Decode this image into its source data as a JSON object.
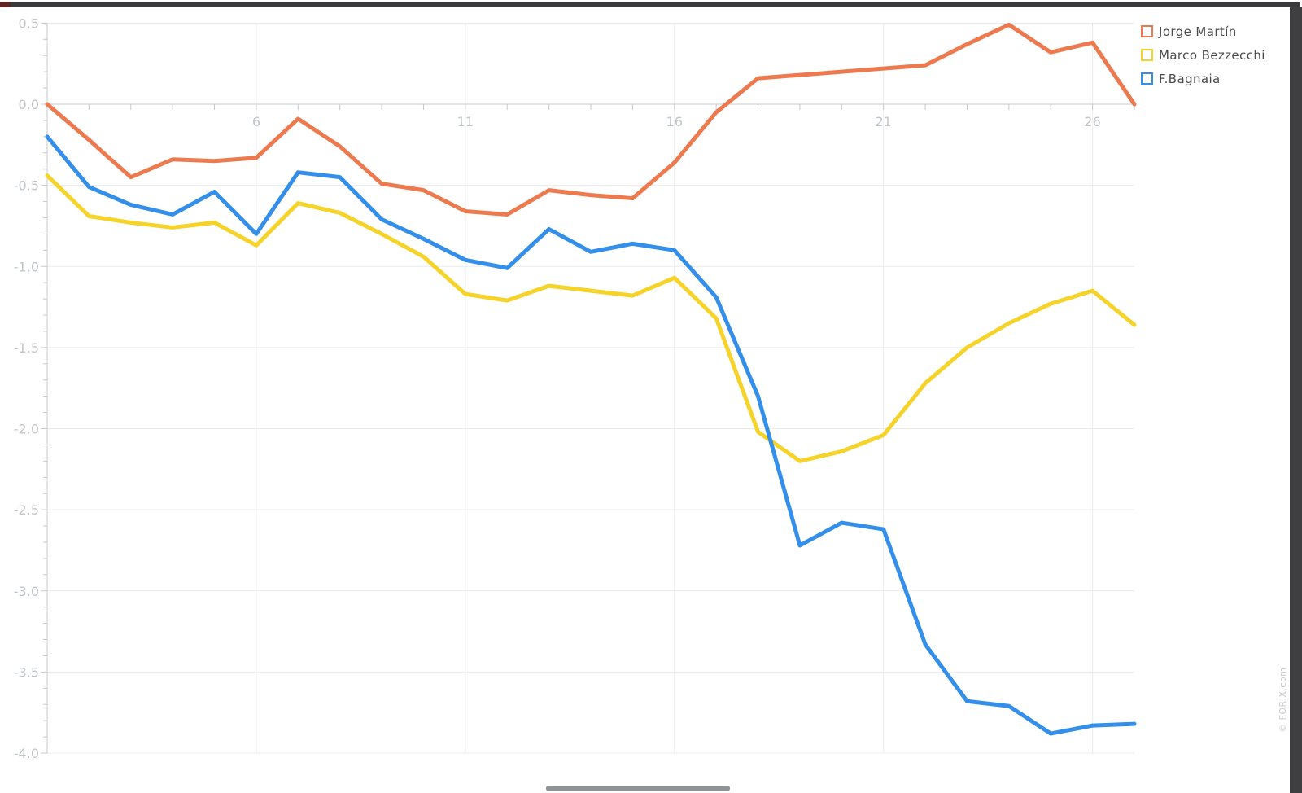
{
  "watermark": "© FORIX.com",
  "colors": {
    "background": "#ffffff",
    "grid": "#ececec",
    "axis": "#c6c9cb",
    "tick_label": "#c2c6c9",
    "legend_text": "#4b4b4d",
    "frame": "#3a3a3c",
    "frame_accent": "#5d2422",
    "scrollbar": "#8f9396"
  },
  "chart_data": {
    "type": "line",
    "title": "",
    "xlabel": "",
    "ylabel": "",
    "grid": true,
    "legend_position": "top-right",
    "x": [
      1,
      2,
      3,
      4,
      5,
      6,
      7,
      8,
      9,
      10,
      11,
      12,
      13,
      14,
      15,
      16,
      17,
      18,
      19,
      20,
      21,
      22,
      23,
      24,
      25,
      26,
      27
    ],
    "x_tick_labels": [
      6,
      11,
      16,
      21,
      26
    ],
    "x_minor_tick_every": 1,
    "xlim": [
      1,
      27
    ],
    "ylim": [
      -4.0,
      0.5
    ],
    "y_major_tick_step": 0.5,
    "y_minor_tick_step": 0.1,
    "series": [
      {
        "name": "Jorge Martín",
        "color": "#ed7a4f",
        "values": [
          0.0,
          -0.22,
          -0.45,
          -0.34,
          -0.35,
          -0.33,
          -0.09,
          -0.26,
          -0.49,
          -0.53,
          -0.66,
          -0.68,
          -0.53,
          -0.56,
          -0.58,
          -0.36,
          -0.05,
          0.16,
          0.18,
          0.2,
          0.22,
          0.24,
          0.37,
          0.49,
          0.32,
          0.38,
          0.0
        ]
      },
      {
        "name": "Marco Bezzecchi",
        "color": "#f5d329",
        "values": [
          -0.44,
          -0.69,
          -0.73,
          -0.76,
          -0.73,
          -0.87,
          -0.61,
          -0.67,
          -0.8,
          -0.94,
          -1.17,
          -1.21,
          -1.12,
          -1.15,
          -1.18,
          -1.07,
          -1.32,
          -2.02,
          -2.2,
          -2.14,
          -2.04,
          -1.72,
          -1.5,
          -1.35,
          -1.23,
          -1.15,
          -1.36
        ]
      },
      {
        "name": "F.Bagnaia",
        "color": "#338fea",
        "values": [
          -0.2,
          -0.51,
          -0.62,
          -0.68,
          -0.54,
          -0.8,
          -0.42,
          -0.45,
          -0.71,
          -0.83,
          -0.96,
          -1.01,
          -0.77,
          -0.91,
          -0.86,
          -0.9,
          -1.19,
          -1.8,
          -2.72,
          -2.58,
          -2.62,
          -3.33,
          -3.68,
          -3.71,
          -3.88,
          -3.83,
          -3.82
        ]
      }
    ]
  }
}
